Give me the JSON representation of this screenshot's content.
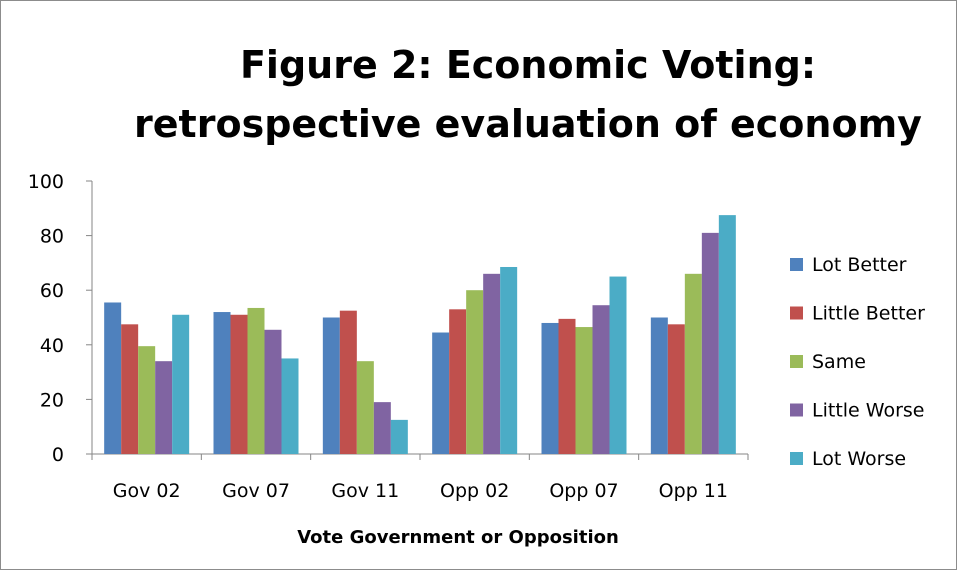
{
  "chart_data": {
    "type": "bar",
    "title_lines": [
      "Figure 2: Economic Voting:",
      "retrospective evaluation of economy"
    ],
    "xlabel": "Vote Government or Opposition",
    "ylabel": "",
    "ylim": [
      0,
      100
    ],
    "yticks": [
      0,
      20,
      40,
      60,
      80,
      100
    ],
    "grid": false,
    "legend_position": "right",
    "categories": [
      "Gov 02",
      "Gov 07",
      "Gov 11",
      "Opp 02",
      "Opp 07",
      "Opp 11"
    ],
    "series": [
      {
        "name": "Lot Better",
        "color": "#4f81bd",
        "values": [
          55.5,
          52,
          50,
          44.5,
          48,
          50
        ]
      },
      {
        "name": "Little Better",
        "color": "#c0504d",
        "values": [
          47.5,
          51,
          52.5,
          53,
          49.5,
          47.5
        ]
      },
      {
        "name": "Same",
        "color": "#9bbb59",
        "values": [
          39.5,
          53.5,
          34,
          60,
          46.5,
          66
        ]
      },
      {
        "name": "Little Worse",
        "color": "#8064a2",
        "values": [
          34,
          45.5,
          19,
          66,
          54.5,
          81
        ]
      },
      {
        "name": "Lot Worse",
        "color": "#4bacc6",
        "values": [
          51,
          35,
          12.5,
          68.5,
          65,
          87.5
        ]
      }
    ]
  }
}
